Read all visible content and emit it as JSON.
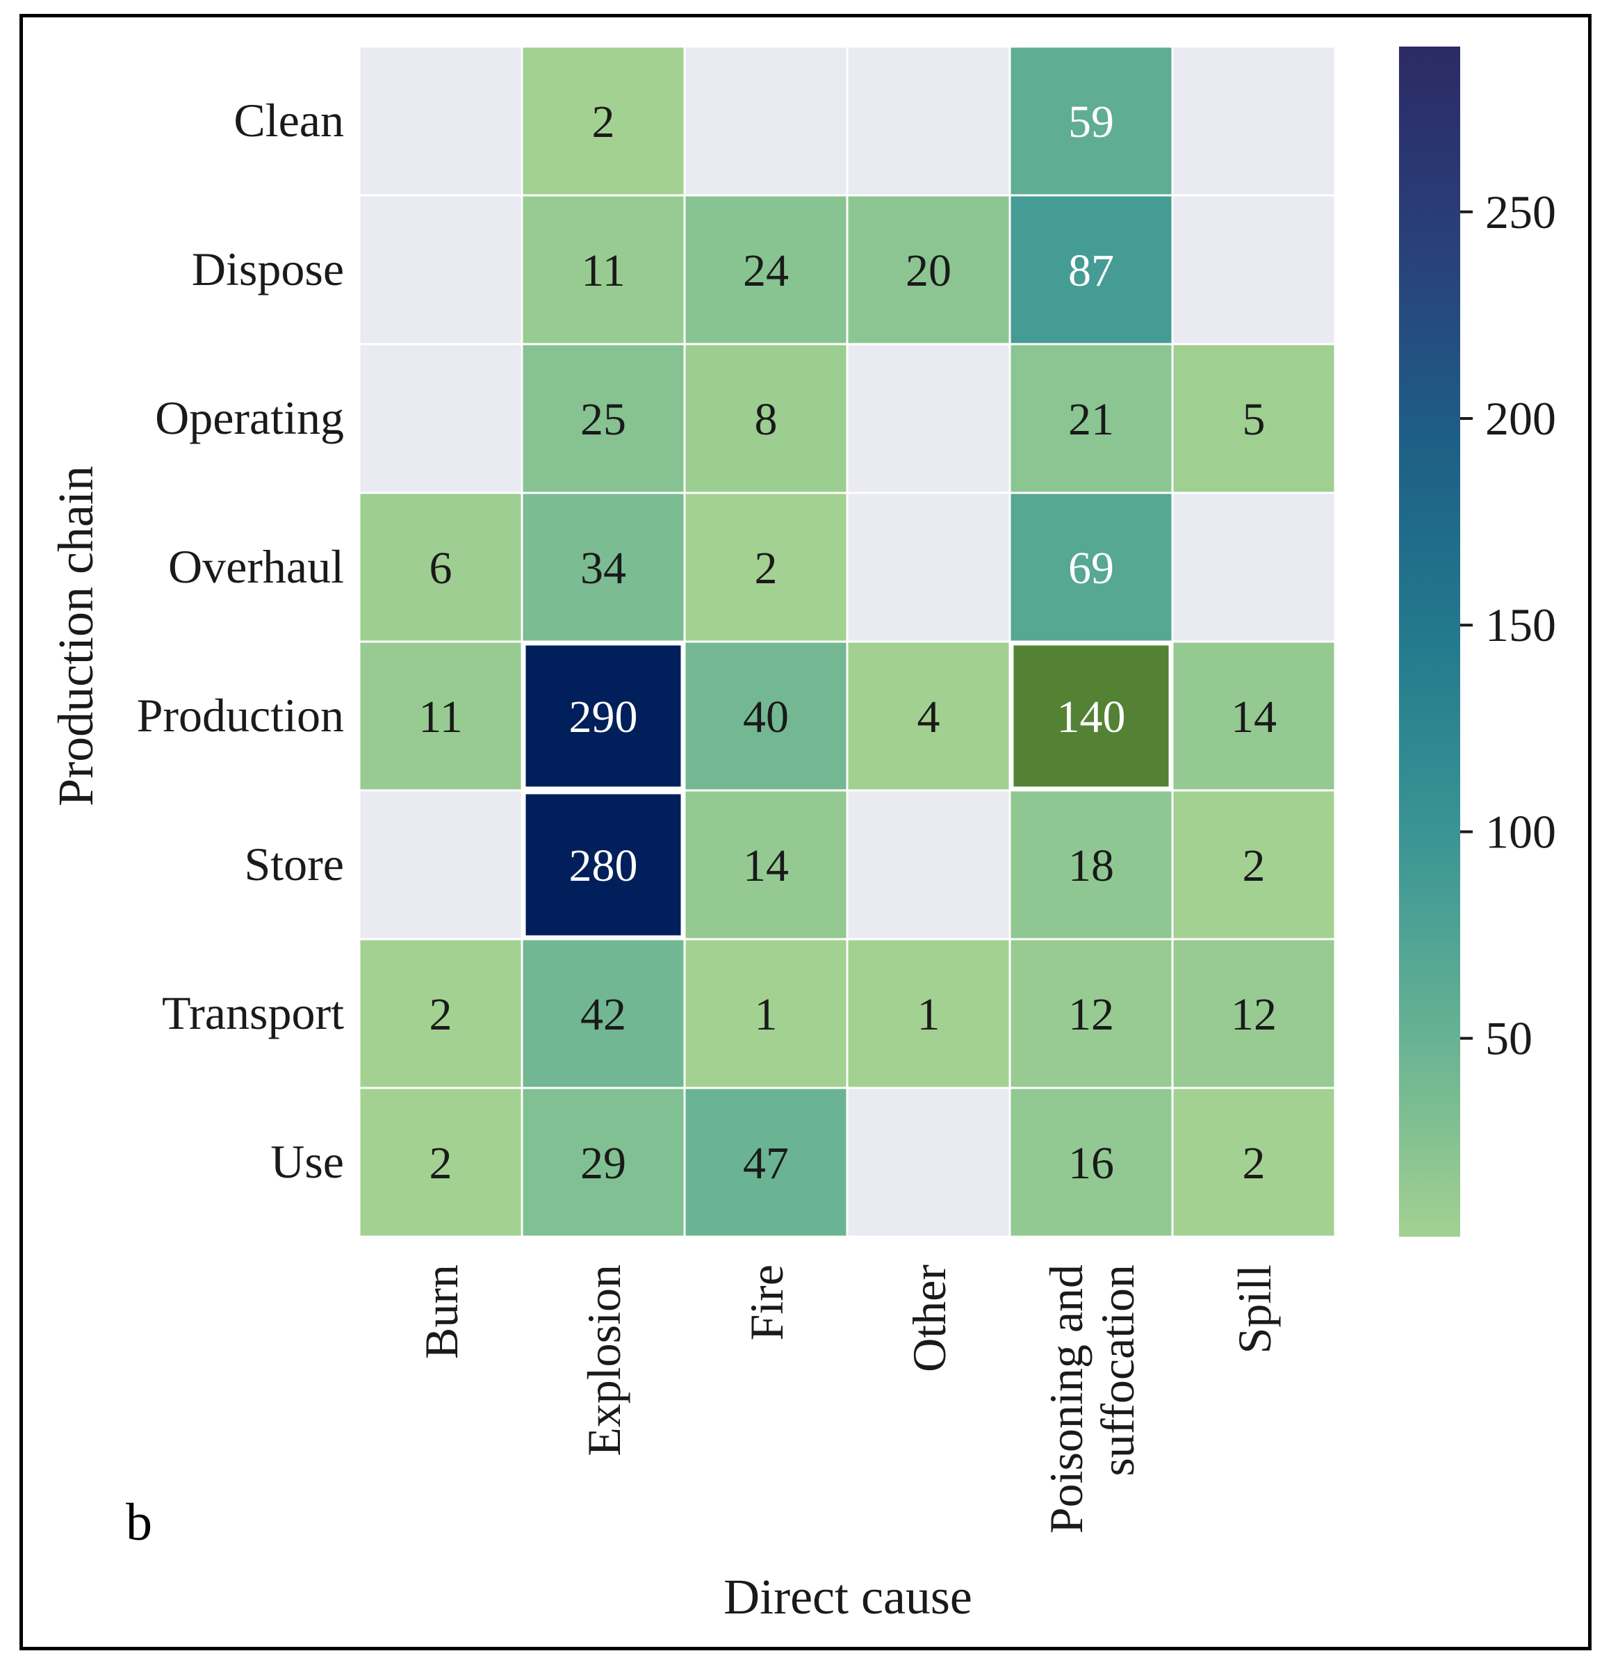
{
  "panel_label": "b",
  "chart_data": {
    "type": "heatmap",
    "xlabel": "Direct cause",
    "ylabel": "Production chain",
    "x_categories": [
      "Burn",
      "Explosion",
      "Fire",
      "Other",
      "Poisoning and suffocation",
      "Spill"
    ],
    "x_category_lines": [
      [
        "Burn"
      ],
      [
        "Explosion"
      ],
      [
        "Fire"
      ],
      [
        "Other"
      ],
      [
        "Poisoning and",
        "suffocation"
      ],
      [
        "Spill"
      ]
    ],
    "y_categories": [
      "Clean",
      "Dispose",
      "Operating",
      "Overhaul",
      "Production",
      "Store",
      "Transport",
      "Use"
    ],
    "values": [
      [
        null,
        2,
        null,
        null,
        59,
        null
      ],
      [
        null,
        11,
        24,
        20,
        87,
        null
      ],
      [
        null,
        25,
        8,
        null,
        21,
        5
      ],
      [
        6,
        34,
        2,
        null,
        69,
        null
      ],
      [
        11,
        290,
        40,
        4,
        140,
        14
      ],
      [
        null,
        280,
        14,
        null,
        18,
        2
      ],
      [
        2,
        42,
        1,
        1,
        12,
        12
      ],
      [
        2,
        29,
        47,
        null,
        16,
        2
      ]
    ],
    "highlighted_cells": [
      {
        "row": "Production",
        "col": "Explosion",
        "color": "#001f5b"
      },
      {
        "row": "Store",
        "col": "Explosion",
        "color": "#001f5b"
      },
      {
        "row": "Production",
        "col": "Poisoning and suffocation",
        "color": "#548235"
      }
    ],
    "missing_color": "#eaeaf2",
    "colorbar": {
      "range": [
        2,
        290
      ],
      "ticks": [
        50,
        100,
        150,
        200,
        250
      ],
      "colors": [
        "#a3d191",
        "#67b293",
        "#3b9594",
        "#237a8d",
        "#1e5f86",
        "#29407a",
        "#2c2a65"
      ]
    }
  }
}
